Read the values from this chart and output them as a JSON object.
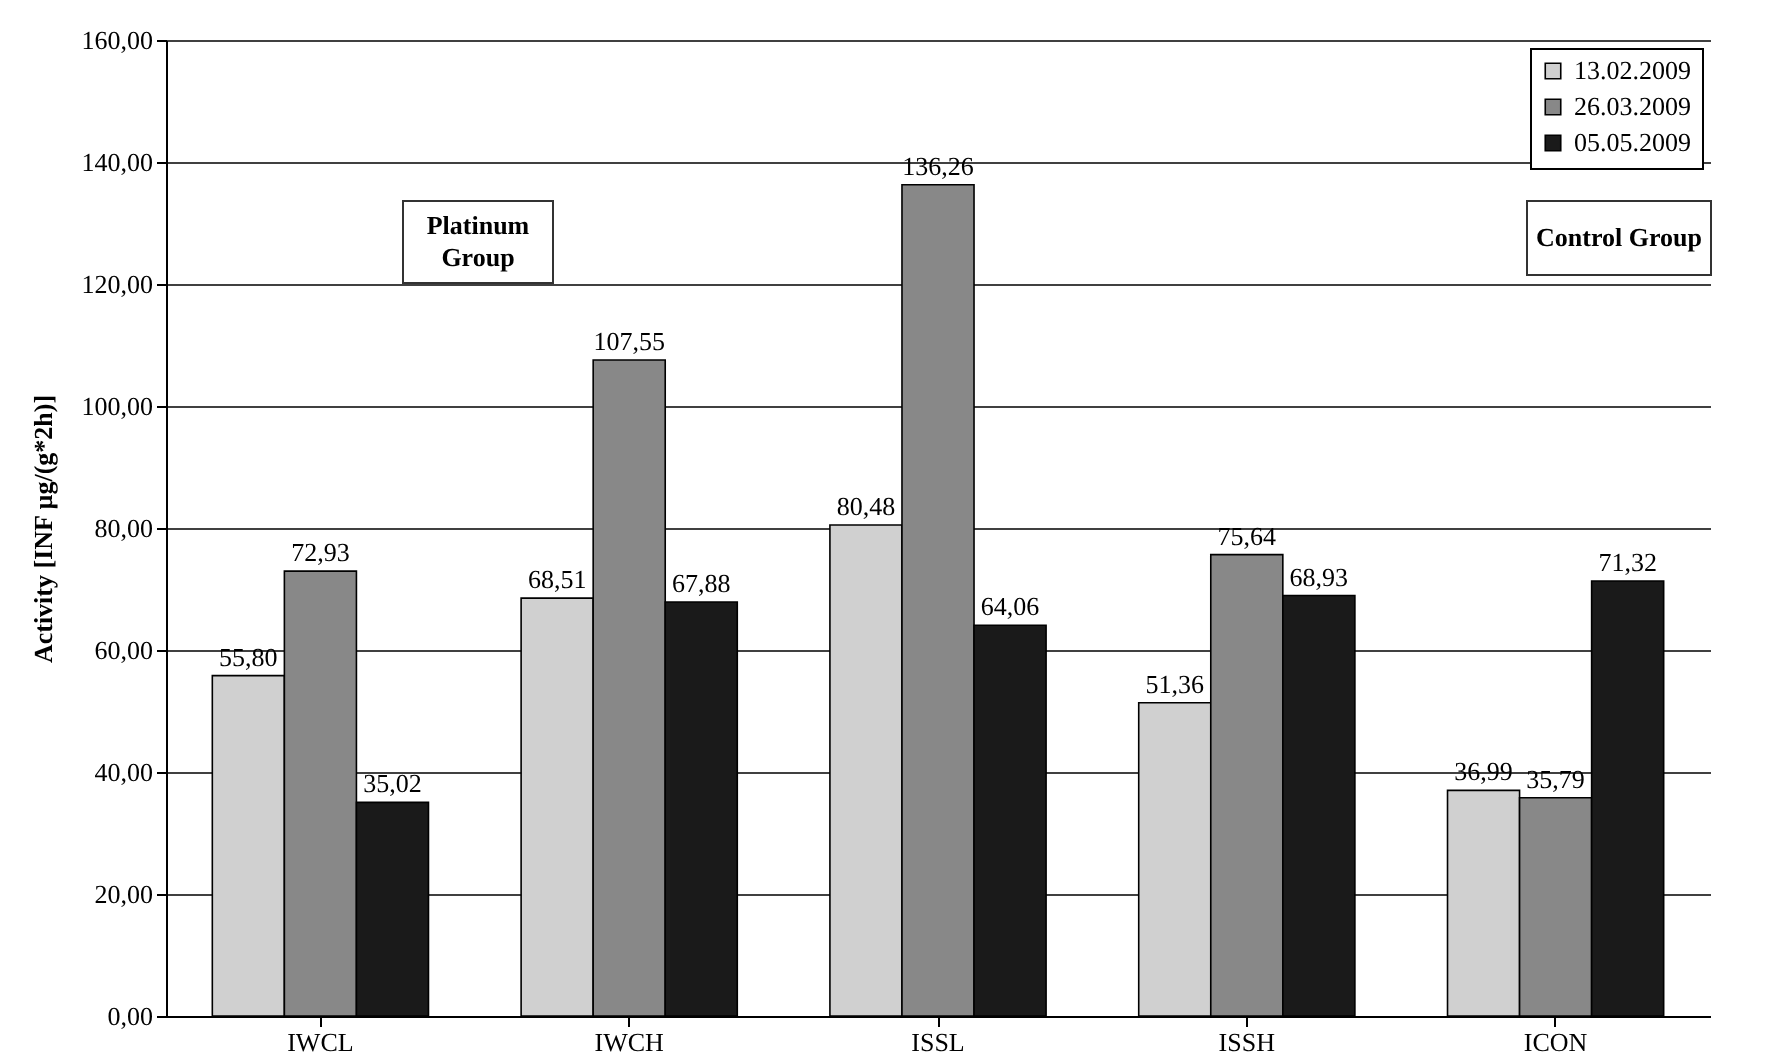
{
  "chart_data": {
    "type": "bar",
    "ylabel": "Activity [INF µg/(g*2h)]",
    "categories": [
      "IWCL",
      "IWCH",
      "ISSL",
      "ISSH",
      "ICON"
    ],
    "series": [
      {
        "name": "13.02.2009",
        "color": "#d0d0d0",
        "values": [
          55.8,
          68.51,
          80.48,
          51.36,
          36.99
        ],
        "value_labels": [
          "55,80",
          "68,51",
          "80,48",
          "51,36",
          "36,99"
        ]
      },
      {
        "name": "26.03.2009",
        "color": "#888888",
        "values": [
          72.93,
          107.55,
          136.26,
          75.64,
          35.79
        ],
        "value_labels": [
          "72,93",
          "107,55",
          "136,26",
          "75,64",
          "35,79"
        ]
      },
      {
        "name": "05.05.2009",
        "color": "#1a1a1a",
        "values": [
          35.02,
          67.88,
          64.06,
          68.93,
          71.32
        ],
        "value_labels": [
          "35,02",
          "67,88",
          "64,06",
          "68,93",
          "71,32"
        ]
      }
    ],
    "ylim": [
      0,
      160
    ],
    "yticks": [
      {
        "value": 0,
        "label": "0,00"
      },
      {
        "value": 20,
        "label": "20,00"
      },
      {
        "value": 40,
        "label": "40,00"
      },
      {
        "value": 60,
        "label": "60,00"
      },
      {
        "value": 80,
        "label": "80,00"
      },
      {
        "value": 100,
        "label": "100,00"
      },
      {
        "value": 120,
        "label": "120,00"
      },
      {
        "value": 140,
        "label": "140,00"
      },
      {
        "value": 160,
        "label": "160,00"
      }
    ],
    "grid": "y",
    "legend": "top right",
    "annotations": [
      "Platinum Group",
      "Control Group"
    ]
  }
}
